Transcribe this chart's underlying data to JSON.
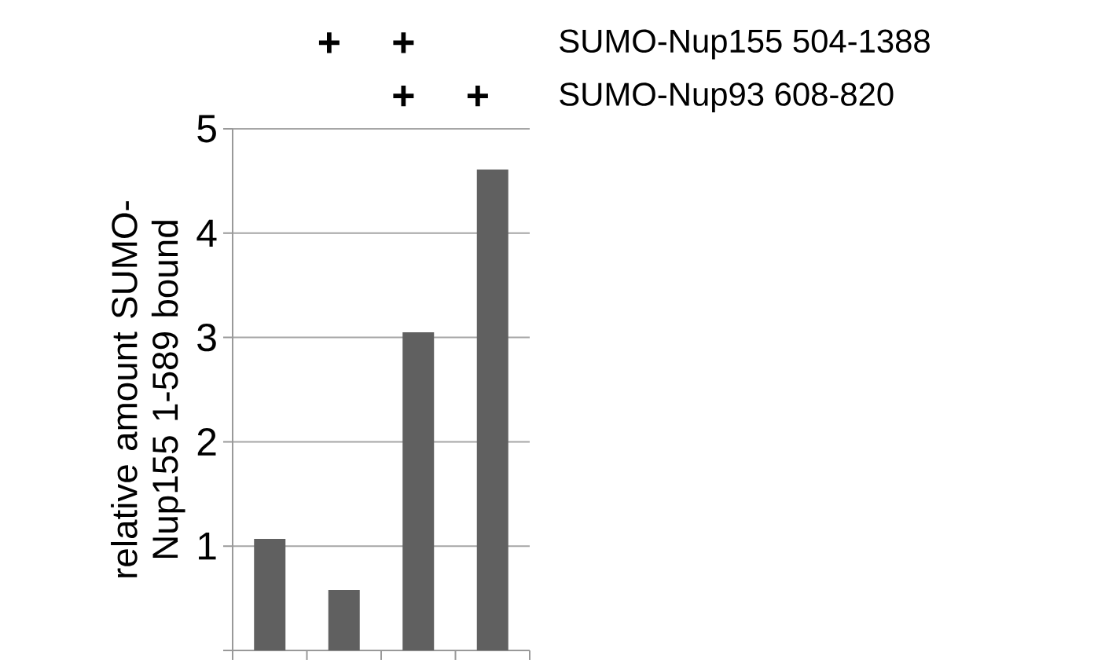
{
  "chart_data": {
    "type": "bar",
    "ylabel": "relative amount SUMO-Nup155 1-589 bound",
    "categories": [
      null,
      null,
      null,
      null
    ],
    "values": [
      1.07,
      0.58,
      3.05,
      4.61
    ],
    "color": "#606060",
    "ylim": [
      0,
      5
    ],
    "yticks": [
      {
        "value": 0,
        "label": null
      },
      1,
      2,
      3,
      4,
      5
    ],
    "grid": "y",
    "annotations": [
      "+",
      "+",
      "+",
      "+",
      "SUMO-Nup155 504-1388",
      "SUMO-Nup93 608-820"
    ]
  }
}
